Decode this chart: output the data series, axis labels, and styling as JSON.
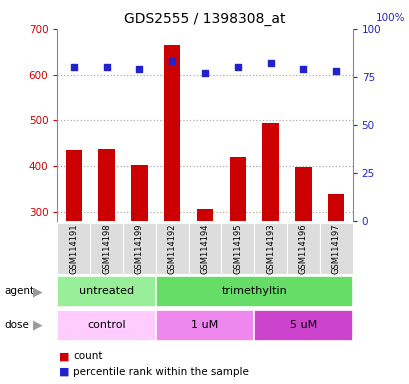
{
  "title": "GDS2555 / 1398308_at",
  "samples": [
    "GSM114191",
    "GSM114198",
    "GSM114199",
    "GSM114192",
    "GSM114194",
    "GSM114195",
    "GSM114193",
    "GSM114196",
    "GSM114197"
  ],
  "counts": [
    435,
    438,
    403,
    665,
    305,
    420,
    493,
    398,
    338
  ],
  "percentiles": [
    80,
    80,
    79,
    83,
    77,
    80,
    82,
    79,
    78
  ],
  "ylim_left": [
    280,
    700
  ],
  "ylim_right": [
    0,
    100
  ],
  "yticks_left": [
    300,
    400,
    500,
    600,
    700
  ],
  "yticks_right": [
    0,
    25,
    50,
    75,
    100
  ],
  "bar_color": "#cc0000",
  "dot_color": "#2222cc",
  "grid_color": "#888888",
  "agent_groups": [
    {
      "label": "untreated",
      "start": 0,
      "end": 3,
      "color": "#99ee99"
    },
    {
      "label": "trimethyltin",
      "start": 3,
      "end": 9,
      "color": "#66dd66"
    }
  ],
  "dose_groups": [
    {
      "label": "control",
      "start": 0,
      "end": 3,
      "color": "#ffccff"
    },
    {
      "label": "1 uM",
      "start": 3,
      "end": 6,
      "color": "#ee88ee"
    },
    {
      "label": "5 uM",
      "start": 6,
      "end": 9,
      "color": "#cc44cc"
    }
  ],
  "legend_count_label": "count",
  "legend_percentile_label": "percentile rank within the sample",
  "bar_color_red": "#cc0000",
  "dot_color_blue": "#2222cc",
  "sample_box_color": "#dddddd",
  "sample_text_color": "#000000",
  "title_fontsize": 10
}
